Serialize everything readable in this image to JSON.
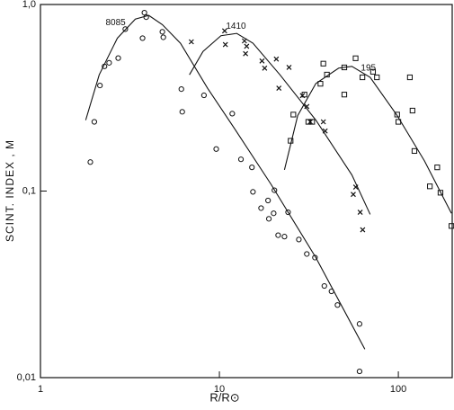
{
  "chart_data": {
    "type": "scatter",
    "y_label": "SCINT. INDEX , M",
    "x_label": "R/R⊙",
    "xlim": [
      1,
      200
    ],
    "ylim": [
      0.01,
      1
    ],
    "xlog": true,
    "ylog": true,
    "xticks": [
      1,
      10,
      100
    ],
    "yticks": [
      {
        "value": 1,
        "label": "1,0"
      },
      {
        "value": 0.1,
        "label": "0,1"
      },
      {
        "value": 0.01,
        "label": "0,01"
      }
    ],
    "series": [
      {
        "marker": "circle",
        "color": "#111111",
        "x": [
          1.9,
          2.0,
          2.15,
          2.28,
          2.42,
          2.72,
          2.98,
          3.81,
          3.9,
          3.72,
          4.8,
          4.86,
          6.13,
          6.2,
          8.2,
          9.6,
          11.8,
          13.2,
          15.2,
          15.4,
          17.1,
          18.7,
          18.9,
          20.3,
          20.1,
          21.3,
          23.1,
          24.2,
          27.8,
          30.8,
          34.2,
          38.6,
          42.3,
          45.7,
          60.7,
          60.7
        ],
        "values": [
          0.143,
          0.235,
          0.368,
          0.466,
          0.487,
          0.516,
          0.738,
          0.904,
          0.855,
          0.66,
          0.714,
          0.667,
          0.352,
          0.266,
          0.326,
          0.168,
          0.26,
          0.148,
          0.134,
          0.099,
          0.081,
          0.089,
          0.071,
          0.101,
          0.076,
          0.058,
          0.057,
          0.077,
          0.055,
          0.046,
          0.044,
          0.031,
          0.029,
          0.0245,
          0.0194,
          0.0108
        ]
      },
      {
        "marker": "x",
        "color": "#111111",
        "x": [
          6.97,
          10.7,
          10.8,
          13.8,
          14.2,
          14.0,
          17.3,
          17.9,
          20.8,
          24.5,
          21.5,
          29.1,
          30.8,
          32.2,
          38.1,
          39.0,
          56.0,
          57.8,
          61.2,
          63.2
        ],
        "values": [
          0.631,
          0.722,
          0.61,
          0.638,
          0.597,
          0.545,
          0.498,
          0.456,
          0.51,
          0.46,
          0.356,
          0.325,
          0.284,
          0.235,
          0.235,
          0.21,
          0.096,
          0.105,
          0.077,
          0.062
        ]
      },
      {
        "marker": "square",
        "color": "#111111",
        "x": [
          25.0,
          25.9,
          29.9,
          31.4,
          33.0,
          36.7,
          38.1,
          39.9,
          49.9,
          49.9,
          57.7,
          63.0,
          72.2,
          75.9,
          98.5,
          100,
          116,
          120,
          123,
          150,
          165,
          172,
          198
        ],
        "values": [
          0.186,
          0.257,
          0.329,
          0.235,
          0.235,
          0.376,
          0.482,
          0.421,
          0.46,
          0.329,
          0.515,
          0.407,
          0.436,
          0.407,
          0.257,
          0.235,
          0.407,
          0.27,
          0.164,
          0.106,
          0.134,
          0.098,
          0.065
        ]
      },
      {
        "name": "8085",
        "marker": "line",
        "color": "#111111",
        "x": [
          1.79,
          2.13,
          2.69,
          3.39,
          4.03,
          4.8,
          6.06,
          8.6,
          12.2,
          19.4,
          34.6,
          65
        ],
        "values": [
          0.24,
          0.42,
          0.66,
          0.835,
          0.874,
          0.78,
          0.62,
          0.355,
          0.215,
          0.109,
          0.044,
          0.0142
        ]
      },
      {
        "name": "1410",
        "marker": "line",
        "color": "#111111",
        "x": [
          6.8,
          8.1,
          10.2,
          12.5,
          15.4,
          21.8,
          34.6,
          55,
          69.6
        ],
        "values": [
          0.42,
          0.56,
          0.68,
          0.7,
          0.62,
          0.42,
          0.24,
          0.122,
          0.075
        ]
      },
      {
        "name": "195",
        "marker": "line",
        "color": "#111111",
        "x": [
          23.1,
          27.4,
          34.6,
          46.4,
          55,
          69.6,
          98.5,
          140,
          198
        ],
        "values": [
          0.13,
          0.254,
          0.377,
          0.456,
          0.466,
          0.407,
          0.254,
          0.145,
          0.076
        ]
      }
    ]
  }
}
